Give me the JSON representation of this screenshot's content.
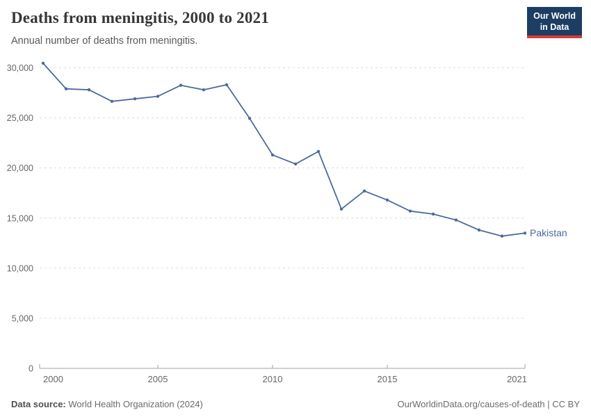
{
  "header": {
    "title": "Deaths from meningitis, 2000 to 2021",
    "subtitle": "Annual number of deaths from meningitis."
  },
  "logo": {
    "line1": "Our World",
    "line2": "in Data",
    "bg_color": "#1d3d63",
    "accent_color": "#d93b33"
  },
  "footer": {
    "source_label": "Data source:",
    "source_text": "World Health Organization (2024)",
    "attribution": "OurWorldinData.org/causes-of-death | CC BY"
  },
  "chart_data": {
    "type": "line",
    "title": "Deaths from meningitis, 2000 to 2021",
    "subtitle": "Annual number of deaths from meningitis.",
    "x": [
      2000,
      2001,
      2002,
      2003,
      2004,
      2005,
      2006,
      2007,
      2008,
      2009,
      2010,
      2011,
      2012,
      2013,
      2014,
      2015,
      2016,
      2017,
      2018,
      2019,
      2020,
      2021
    ],
    "series": [
      {
        "name": "Pakistan",
        "color": "#4c6a9c",
        "values": [
          30450,
          27900,
          27800,
          26650,
          26900,
          27150,
          28250,
          27800,
          28300,
          24950,
          21300,
          20400,
          21650,
          15900,
          17700,
          16800,
          15700,
          15400,
          14800,
          13800,
          13200,
          13500
        ]
      }
    ],
    "ylim": [
      0,
      30000
    ],
    "yticks": [
      0,
      5000,
      10000,
      15000,
      20000,
      25000,
      30000
    ],
    "xticks": [
      2000,
      2005,
      2010,
      2015,
      2021
    ],
    "grid": "horizontal-dashed",
    "gridline_color": "#dcdcdc",
    "axis_color": "#a2a2a2",
    "tick_label_color": "#666666",
    "legend_position": "end-of-line-label"
  }
}
